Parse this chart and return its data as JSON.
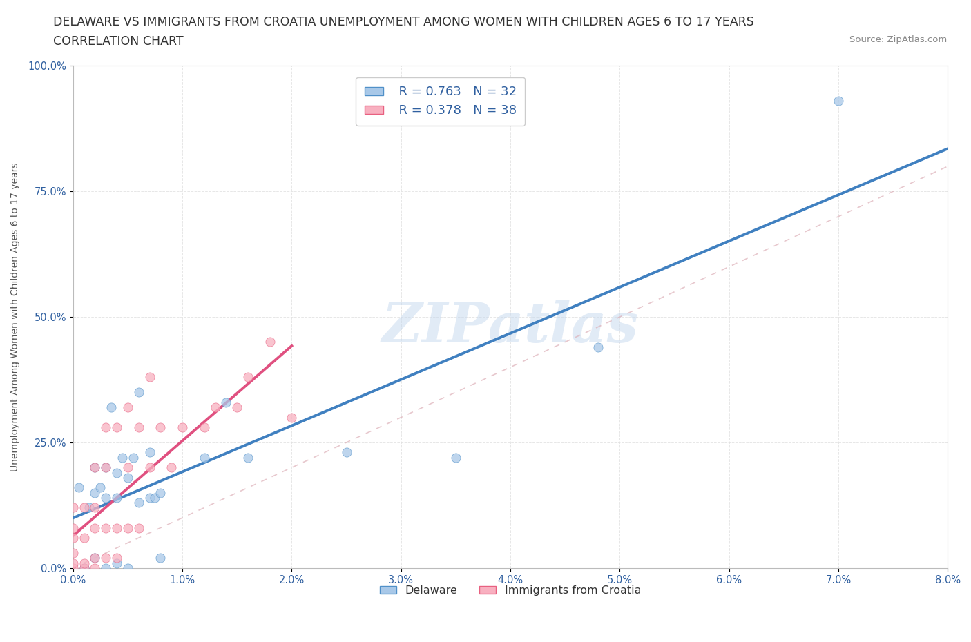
{
  "title_line1": "DELAWARE VS IMMIGRANTS FROM CROATIA UNEMPLOYMENT AMONG WOMEN WITH CHILDREN AGES 6 TO 17 YEARS",
  "title_line2": "CORRELATION CHART",
  "source_text": "Source: ZipAtlas.com",
  "ylabel": "Unemployment Among Women with Children Ages 6 to 17 years",
  "xlim": [
    0,
    0.08
  ],
  "ylim": [
    0,
    1.0
  ],
  "xticks": [
    0.0,
    0.01,
    0.02,
    0.03,
    0.04,
    0.05,
    0.06,
    0.07,
    0.08
  ],
  "xticklabels": [
    "0.0%",
    "1.0%",
    "2.0%",
    "3.0%",
    "4.0%",
    "5.0%",
    "6.0%",
    "7.0%",
    "8.0%"
  ],
  "yticks": [
    0.0,
    0.25,
    0.5,
    0.75,
    1.0
  ],
  "yticklabels": [
    "0.0%",
    "25.0%",
    "50.0%",
    "75.0%",
    "100.0%"
  ],
  "watermark": "ZIPatlas",
  "legend_r1": "R = 0.763   N = 32",
  "legend_r2": "R = 0.378   N = 38",
  "legend_label1": "Delaware",
  "legend_label2": "Immigrants from Croatia",
  "color_delaware_face": "#a8c8e8",
  "color_delaware_edge": "#5090c8",
  "color_croatia_face": "#f8b0c0",
  "color_croatia_edge": "#e86080",
  "color_trend_delaware": "#4080c0",
  "color_trend_croatia": "#e05080",
  "color_diag": "#d0b0b0",
  "delaware_x": [
    0.0005,
    0.001,
    0.0015,
    0.002,
    0.002,
    0.002,
    0.0025,
    0.003,
    0.003,
    0.003,
    0.0035,
    0.004,
    0.004,
    0.004,
    0.0045,
    0.005,
    0.005,
    0.0055,
    0.006,
    0.006,
    0.007,
    0.007,
    0.0075,
    0.008,
    0.008,
    0.012,
    0.014,
    0.016,
    0.025,
    0.035,
    0.048,
    0.07
  ],
  "delaware_y": [
    0.16,
    0.0,
    0.12,
    0.02,
    0.15,
    0.2,
    0.16,
    0.0,
    0.14,
    0.2,
    0.32,
    0.01,
    0.14,
    0.19,
    0.22,
    0.0,
    0.18,
    0.22,
    0.13,
    0.35,
    0.14,
    0.23,
    0.14,
    0.02,
    0.15,
    0.22,
    0.33,
    0.22,
    0.23,
    0.22,
    0.44,
    0.93
  ],
  "croatia_x": [
    0.0,
    0.0,
    0.0,
    0.0,
    0.0,
    0.0,
    0.001,
    0.001,
    0.001,
    0.001,
    0.002,
    0.002,
    0.002,
    0.002,
    0.002,
    0.003,
    0.003,
    0.003,
    0.003,
    0.004,
    0.004,
    0.004,
    0.005,
    0.005,
    0.005,
    0.006,
    0.006,
    0.007,
    0.007,
    0.008,
    0.009,
    0.01,
    0.012,
    0.013,
    0.015,
    0.016,
    0.018,
    0.02
  ],
  "croatia_y": [
    0.0,
    0.01,
    0.03,
    0.06,
    0.08,
    0.12,
    0.0,
    0.01,
    0.06,
    0.12,
    0.0,
    0.02,
    0.08,
    0.12,
    0.2,
    0.02,
    0.08,
    0.2,
    0.28,
    0.02,
    0.08,
    0.28,
    0.08,
    0.2,
    0.32,
    0.08,
    0.28,
    0.2,
    0.38,
    0.28,
    0.2,
    0.28,
    0.28,
    0.32,
    0.32,
    0.38,
    0.45,
    0.3
  ],
  "background_color": "#ffffff",
  "grid_color": "#e0e0e0",
  "title_fontsize": 12.5,
  "axis_label_fontsize": 10,
  "tick_fontsize": 10.5,
  "legend_fontsize": 13
}
